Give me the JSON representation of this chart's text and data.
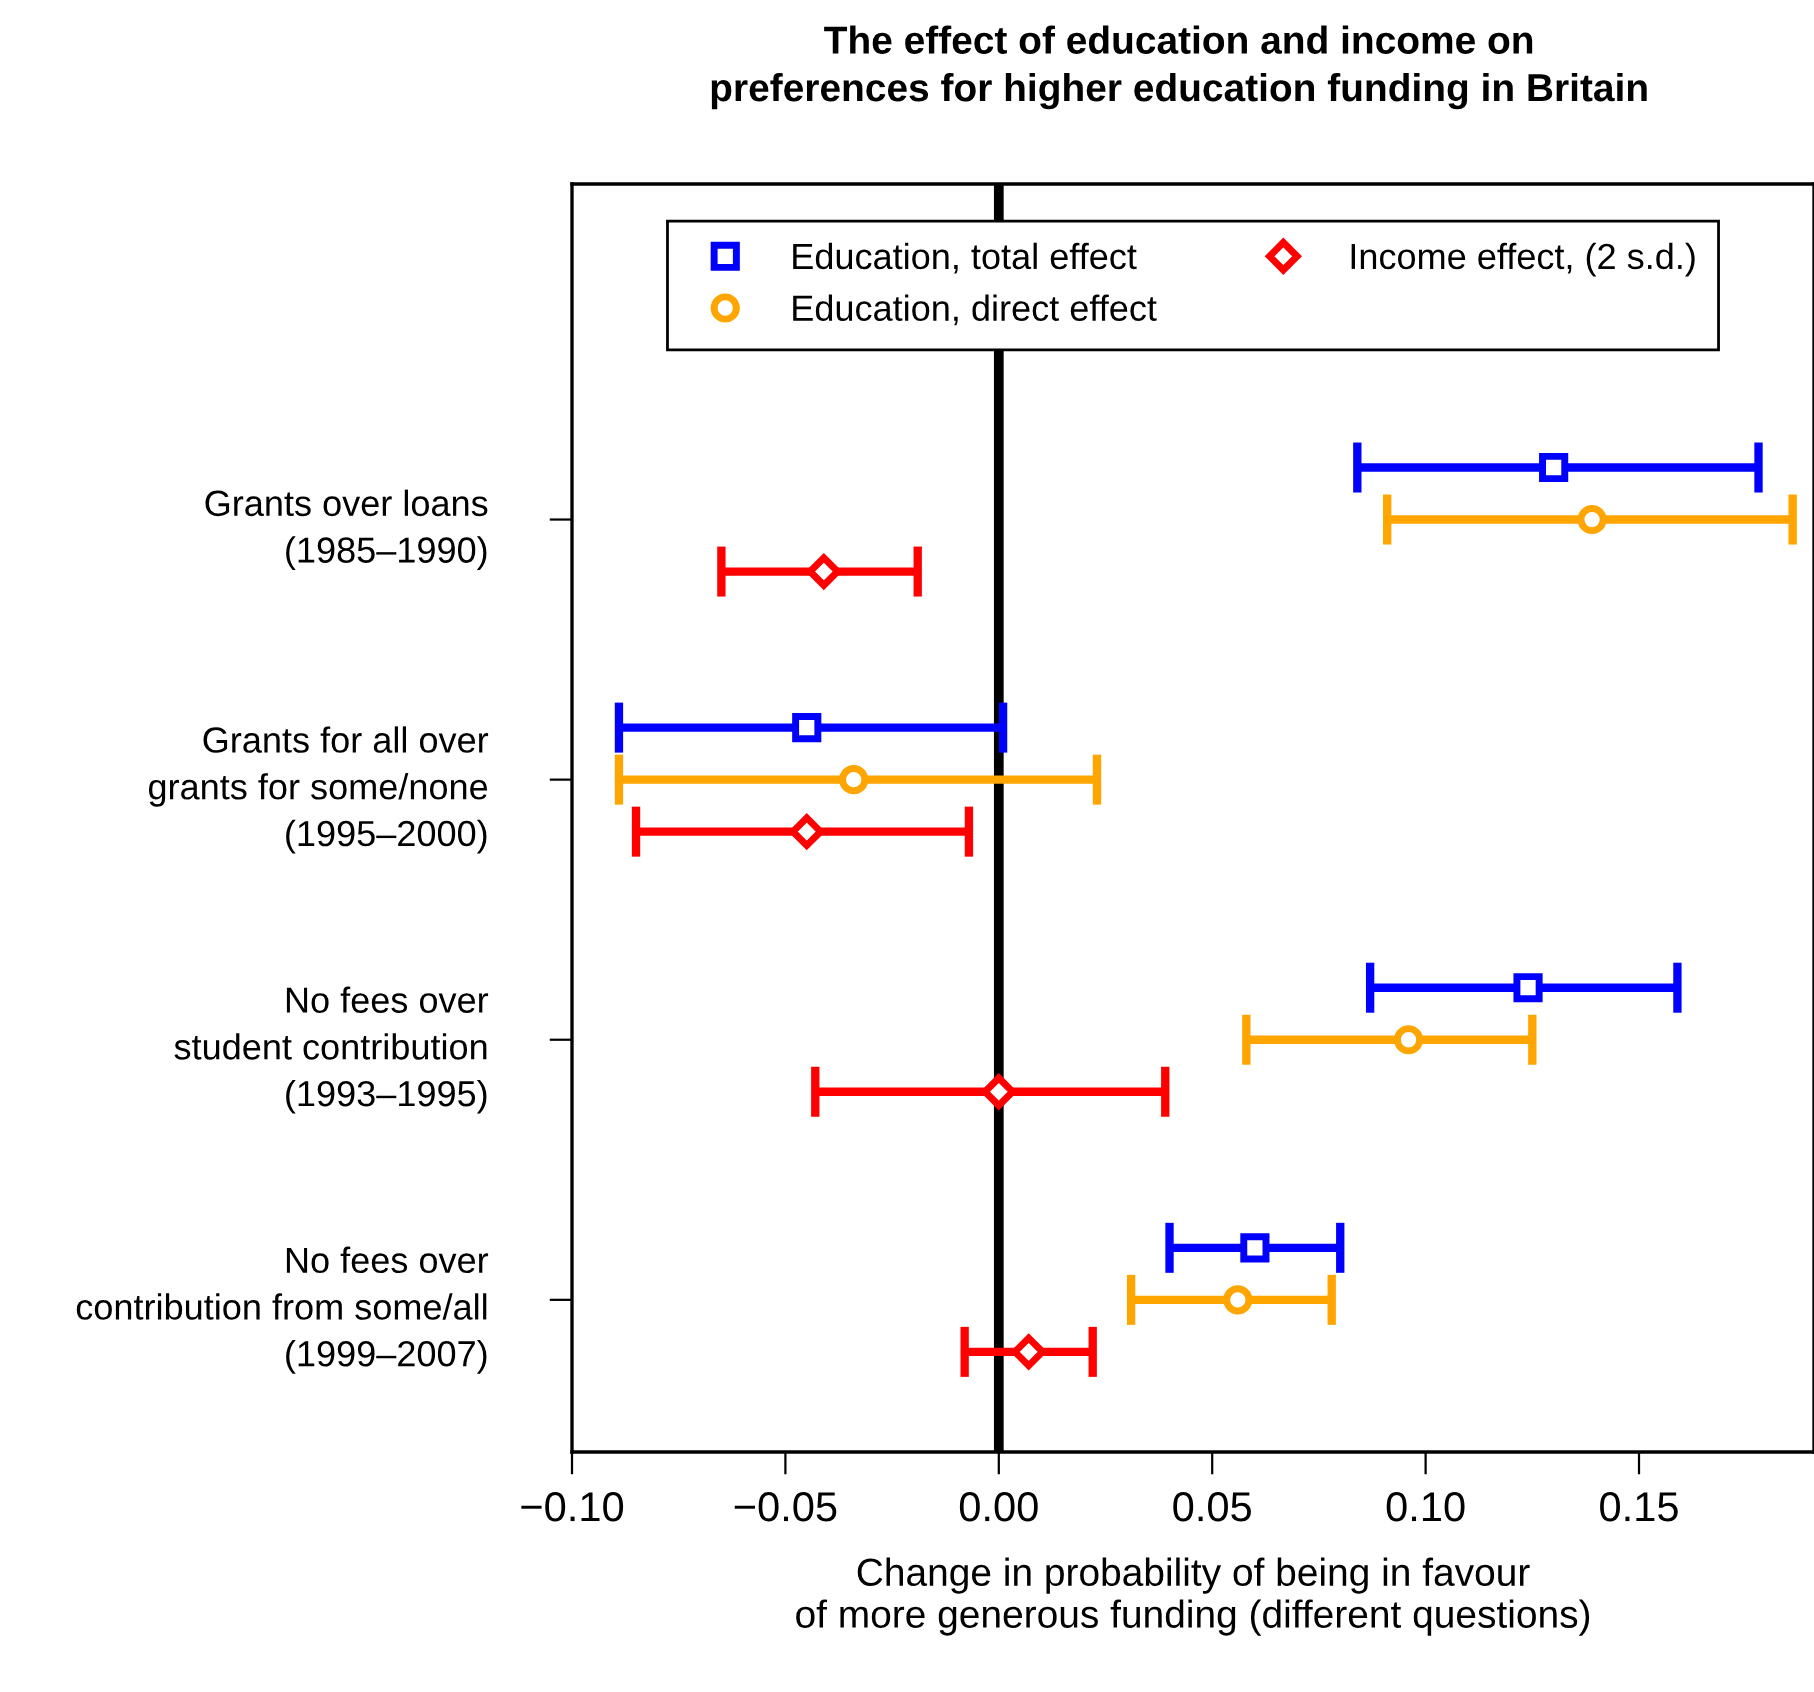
{
  "chart_data": {
    "type": "scatter",
    "orientation": "horizontal",
    "title": "The effect of education and income on\npreferences for higher education funding in Britain",
    "xlabel": "Change in probability of being in favour\nof more generous funding (different questions)",
    "categories": [
      "Grants over loans\n(1985–1990)",
      "Grants for all over\ngrants for some/none\n(1995–2000)",
      "No fees over\nstudent contribution\n(1993–1995)",
      "No fees over\ncontribution from some/all\n(1999–2007)"
    ],
    "series": [
      {
        "name": "Education, total effect",
        "color": "#0000ff",
        "marker": "square",
        "values": [
          0.13,
          -0.045,
          0.124,
          0.06
        ],
        "errors": [
          [
            0.084,
            0.178
          ],
          [
            -0.089,
            0.001
          ],
          [
            0.087,
            0.159
          ],
          [
            0.04,
            0.08
          ]
        ]
      },
      {
        "name": "Education, direct effect",
        "color": "#ffa500",
        "marker": "circle",
        "values": [
          0.139,
          -0.034,
          0.096,
          0.056
        ],
        "errors": [
          [
            0.091,
            0.186
          ],
          [
            -0.089,
            0.023
          ],
          [
            0.058,
            0.125
          ],
          [
            0.031,
            0.078
          ]
        ]
      },
      {
        "name": "Income effect, (2 s.d.)",
        "color": "#ff0000",
        "marker": "diamond",
        "values": [
          -0.041,
          -0.045,
          0.0,
          0.007
        ],
        "errors": [
          [
            -0.065,
            -0.019
          ],
          [
            -0.085,
            -0.007
          ],
          [
            -0.043,
            0.039
          ],
          [
            -0.008,
            0.022
          ]
        ]
      }
    ],
    "xlim": [
      -0.1,
      0.191
    ],
    "xticks": [
      {
        "value": -0.1,
        "label": "−0.10"
      },
      {
        "value": -0.05,
        "label": "−0.05"
      },
      {
        "value": 0.0,
        "label": "0.00"
      },
      {
        "value": 0.05,
        "label": "0.05"
      },
      {
        "value": 0.1,
        "label": "0.10"
      },
      {
        "value": 0.15,
        "label": "0.15"
      }
    ],
    "ref_lines": [
      {
        "axis": "x",
        "value": 0,
        "color": "#000000",
        "line_style": "solid"
      }
    ],
    "legend": "top",
    "grid": false
  }
}
